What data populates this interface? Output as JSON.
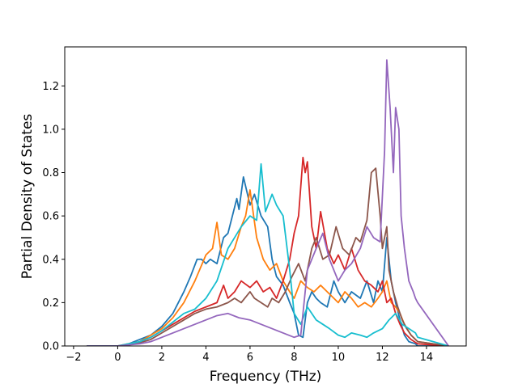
{
  "chart_data": {
    "type": "line",
    "title": "",
    "xlabel": "Frequency (THz)",
    "ylabel": "Partial Density of States",
    "xlim": [
      -2.4,
      15.8
    ],
    "ylim": [
      0.0,
      1.38
    ],
    "xticks": [
      -2,
      0,
      2,
      4,
      6,
      8,
      10,
      12,
      14
    ],
    "yticks": [
      0.0,
      0.2,
      0.4,
      0.6,
      0.8,
      1.0,
      1.2
    ],
    "xtick_labels": [
      "−2",
      "0",
      "2",
      "4",
      "6",
      "8",
      "10",
      "12",
      "14"
    ],
    "ytick_labels": [
      "0.0",
      "0.2",
      "0.4",
      "0.6",
      "0.8",
      "1.0",
      "1.2"
    ],
    "grid": false,
    "series": [
      {
        "color": "#1f77b4",
        "x": [
          -1.4,
          0,
          0.5,
          1,
          1.5,
          2,
          2.5,
          3,
          3.3,
          3.6,
          3.8,
          4.0,
          4.2,
          4.5,
          4.8,
          5.0,
          5.2,
          5.4,
          5.5,
          5.7,
          6.0,
          6.2,
          6.5,
          6.8,
          7.0,
          7.2,
          7.5,
          7.8,
          8.0,
          8.2,
          8.4,
          8.6,
          8.8,
          9.0,
          9.2,
          9.5,
          9.8,
          10.0,
          10.3,
          10.6,
          11.0,
          11.3,
          11.6,
          11.8,
          12.0,
          12.2,
          12.4,
          12.6,
          12.8,
          13.0,
          13.2,
          13.5,
          13.6,
          15.0
        ],
        "y": [
          0,
          0,
          0.01,
          0.03,
          0.05,
          0.09,
          0.15,
          0.25,
          0.32,
          0.4,
          0.4,
          0.38,
          0.4,
          0.38,
          0.5,
          0.52,
          0.6,
          0.68,
          0.63,
          0.78,
          0.65,
          0.7,
          0.6,
          0.55,
          0.4,
          0.32,
          0.28,
          0.2,
          0.15,
          0.05,
          0.04,
          0.2,
          0.25,
          0.22,
          0.2,
          0.18,
          0.3,
          0.25,
          0.2,
          0.25,
          0.22,
          0.3,
          0.2,
          0.3,
          0.25,
          0.5,
          0.3,
          0.2,
          0.12,
          0.05,
          0.02,
          0.01,
          0,
          0
        ]
      },
      {
        "color": "#ff7f0e",
        "x": [
          -1.4,
          0,
          0.5,
          1,
          1.5,
          2,
          2.5,
          3,
          3.5,
          4.0,
          4.3,
          4.5,
          4.7,
          5.0,
          5.3,
          5.6,
          5.8,
          6.0,
          6.3,
          6.6,
          6.9,
          7.2,
          7.5,
          7.8,
          8.0,
          8.3,
          8.6,
          8.9,
          9.2,
          9.5,
          9.8,
          10.0,
          10.3,
          10.6,
          10.9,
          11.2,
          11.5,
          11.8,
          12.0,
          12.2,
          12.4,
          12.6,
          12.8,
          13.0,
          13.3,
          13.6,
          15.0
        ],
        "y": [
          0,
          0,
          0.01,
          0.02,
          0.05,
          0.08,
          0.13,
          0.2,
          0.3,
          0.42,
          0.45,
          0.57,
          0.42,
          0.4,
          0.45,
          0.55,
          0.6,
          0.72,
          0.5,
          0.4,
          0.35,
          0.38,
          0.3,
          0.25,
          0.22,
          0.3,
          0.27,
          0.25,
          0.28,
          0.25,
          0.22,
          0.2,
          0.25,
          0.22,
          0.18,
          0.2,
          0.18,
          0.22,
          0.25,
          0.3,
          0.2,
          0.18,
          0.15,
          0.1,
          0.05,
          0.02,
          0
        ]
      },
      {
        "color": "#d62728",
        "x": [
          -1.4,
          0,
          0.5,
          1,
          1.5,
          2,
          2.5,
          3,
          3.5,
          4.0,
          4.5,
          4.8,
          5.0,
          5.3,
          5.6,
          6.0,
          6.3,
          6.6,
          6.9,
          7.2,
          7.5,
          7.8,
          8.0,
          8.2,
          8.4,
          8.5,
          8.6,
          8.8,
          9.0,
          9.2,
          9.5,
          9.8,
          10.0,
          10.3,
          10.6,
          10.9,
          11.2,
          11.5,
          11.8,
          12.0,
          12.2,
          12.4,
          12.6,
          12.8,
          13.0,
          13.3,
          13.6,
          15.0
        ],
        "y": [
          0,
          0,
          0.005,
          0.02,
          0.04,
          0.07,
          0.1,
          0.13,
          0.16,
          0.18,
          0.2,
          0.28,
          0.22,
          0.25,
          0.3,
          0.27,
          0.3,
          0.25,
          0.27,
          0.22,
          0.3,
          0.4,
          0.52,
          0.6,
          0.87,
          0.8,
          0.85,
          0.55,
          0.45,
          0.62,
          0.45,
          0.38,
          0.42,
          0.35,
          0.45,
          0.35,
          0.3,
          0.28,
          0.25,
          0.3,
          0.2,
          0.22,
          0.15,
          0.1,
          0.06,
          0.03,
          0.01,
          0
        ]
      },
      {
        "color": "#8c564b",
        "x": [
          -1.4,
          0,
          0.5,
          1,
          1.5,
          2,
          2.5,
          3,
          3.5,
          4.0,
          4.5,
          5.0,
          5.3,
          5.6,
          6.0,
          6.2,
          6.5,
          6.8,
          7.0,
          7.3,
          7.6,
          7.9,
          8.2,
          8.5,
          8.8,
          9.0,
          9.3,
          9.6,
          9.9,
          10.2,
          10.5,
          10.8,
          11.0,
          11.3,
          11.5,
          11.7,
          11.9,
          12.0,
          12.2,
          12.3,
          12.5,
          12.7,
          12.9,
          13.1,
          13.3,
          13.6,
          15.0
        ],
        "y": [
          0,
          0,
          0.005,
          0.015,
          0.03,
          0.06,
          0.09,
          0.12,
          0.15,
          0.17,
          0.18,
          0.2,
          0.22,
          0.2,
          0.25,
          0.22,
          0.2,
          0.18,
          0.22,
          0.2,
          0.25,
          0.32,
          0.38,
          0.3,
          0.45,
          0.5,
          0.4,
          0.42,
          0.55,
          0.45,
          0.42,
          0.5,
          0.48,
          0.58,
          0.8,
          0.82,
          0.6,
          0.45,
          0.55,
          0.35,
          0.25,
          0.18,
          0.12,
          0.08,
          0.05,
          0.02,
          0
        ]
      },
      {
        "color": "#17becf",
        "x": [
          -1.4,
          0,
          0.5,
          1,
          1.5,
          2,
          2.5,
          3,
          3.5,
          4.0,
          4.5,
          5.0,
          5.3,
          5.6,
          6.0,
          6.3,
          6.5,
          6.7,
          7.0,
          7.2,
          7.5,
          7.8,
          8.0,
          8.3,
          8.6,
          9.0,
          9.3,
          9.6,
          10.0,
          10.3,
          10.6,
          11.0,
          11.3,
          11.6,
          12.0,
          12.3,
          12.6,
          12.9,
          13.2,
          13.5,
          13.6,
          15.0
        ],
        "y": [
          0,
          0,
          0.01,
          0.02,
          0.04,
          0.07,
          0.11,
          0.15,
          0.17,
          0.22,
          0.3,
          0.45,
          0.5,
          0.55,
          0.6,
          0.58,
          0.84,
          0.62,
          0.7,
          0.65,
          0.6,
          0.35,
          0.15,
          0.1,
          0.18,
          0.12,
          0.1,
          0.08,
          0.05,
          0.04,
          0.06,
          0.05,
          0.04,
          0.06,
          0.08,
          0.12,
          0.15,
          0.1,
          0.08,
          0.06,
          0.04,
          0
        ]
      },
      {
        "color": "#9467bd",
        "x": [
          -1.4,
          0,
          0.5,
          1,
          1.5,
          2,
          2.5,
          3,
          3.5,
          4.0,
          4.5,
          5.0,
          5.5,
          6.0,
          6.5,
          7.0,
          7.5,
          8.0,
          8.3,
          8.6,
          9.0,
          9.3,
          9.6,
          10.0,
          10.3,
          10.6,
          11.0,
          11.3,
          11.6,
          11.9,
          12.1,
          12.2,
          12.35,
          12.5,
          12.6,
          12.75,
          12.85,
          13.0,
          13.2,
          13.4,
          13.5,
          13.6,
          15.0
        ],
        "y": [
          0,
          0,
          0.005,
          0.01,
          0.02,
          0.04,
          0.06,
          0.08,
          0.1,
          0.12,
          0.14,
          0.15,
          0.13,
          0.12,
          0.1,
          0.08,
          0.06,
          0.04,
          0.05,
          0.35,
          0.45,
          0.52,
          0.4,
          0.3,
          0.35,
          0.38,
          0.45,
          0.55,
          0.5,
          0.48,
          0.9,
          1.32,
          1.1,
          0.8,
          1.1,
          1.0,
          0.6,
          0.45,
          0.3,
          0.25,
          0.22,
          0.2,
          0
        ]
      }
    ]
  }
}
